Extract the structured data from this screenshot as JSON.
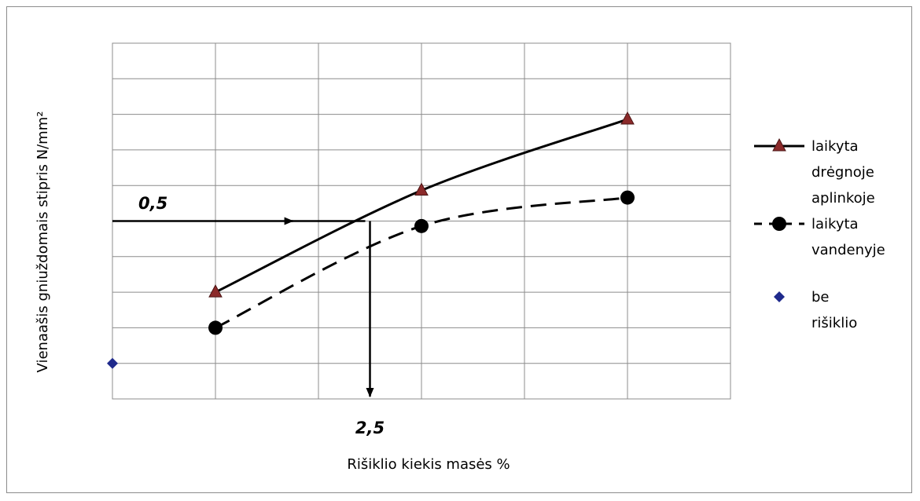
{
  "chart_data": {
    "type": "line",
    "title": "",
    "xlabel": "Rišiklio kiekis masės %",
    "ylabel": "Vienaašis gniuždomais stipris N/mm²",
    "xlim": [
      0,
      6
    ],
    "ylim": [
      0,
      1
    ],
    "grid": true,
    "legend_position": "right",
    "series": [
      {
        "name": "laikyta drėgnoje aplinkoje",
        "line": "solid",
        "marker": "triangle",
        "color": "#000000",
        "marker_fill": "#8b2a2a",
        "x": [
          1,
          3,
          5
        ],
        "y": [
          0.3,
          0.586,
          0.786
        ]
      },
      {
        "name": "laikyta vandenyje",
        "line": "dashed",
        "marker": "circle",
        "color": "#000000",
        "marker_fill": "#000000",
        "x": [
          1,
          3,
          5
        ],
        "y": [
          0.2,
          0.486,
          0.566
        ]
      },
      {
        "name": "be rišiklio",
        "line": "none",
        "marker": "diamond",
        "color": "#1f2a8c",
        "marker_fill": "#1f2a8c",
        "x": [
          0
        ],
        "y": [
          0.1
        ]
      }
    ],
    "annotations": [
      {
        "label": "0,5",
        "from": [
          0,
          0.5
        ],
        "to": [
          1.6,
          0.5
        ],
        "target_x": 2.5,
        "target_y": 0.5
      },
      {
        "label": "2,5",
        "from": [
          2.5,
          0.5
        ],
        "to": [
          2.5,
          0.0
        ]
      }
    ]
  }
}
